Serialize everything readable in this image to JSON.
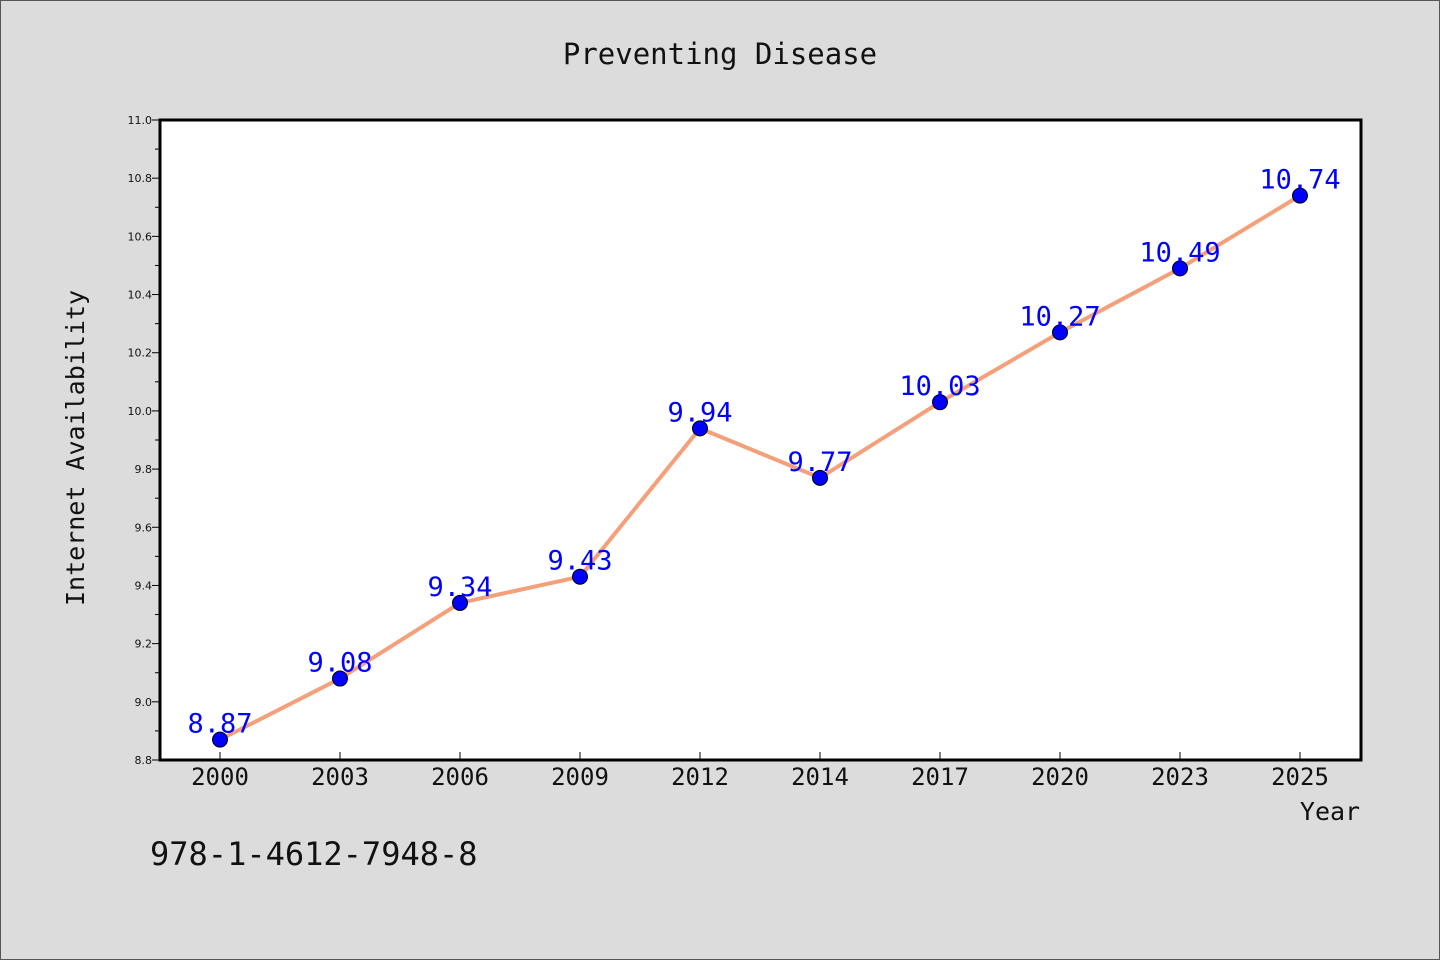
{
  "chart_data": {
    "type": "line",
    "title": "Preventing Disease",
    "xlabel": "Year",
    "ylabel": "Internet Availability",
    "categories": [
      "2000",
      "2003",
      "2006",
      "2009",
      "2012",
      "2014",
      "2017",
      "2020",
      "2023",
      "2025"
    ],
    "series": [
      {
        "values": [
          8.87,
          9.08,
          9.34,
          9.43,
          9.94,
          9.77,
          10.03,
          10.27,
          10.49,
          10.74
        ],
        "line_color": "#f4a07a",
        "marker_color": "#0000ff"
      }
    ],
    "data_labels": [
      "8.87",
      "9.08",
      "9.34",
      "9.43",
      "9.94",
      "9.77",
      "10.03",
      "10.27",
      "10.49",
      "10.74"
    ],
    "ylim": [
      8.8,
      11.0
    ],
    "yticks": [
      "8.8",
      "9.0",
      "9.2",
      "9.4",
      "9.6",
      "9.8",
      "10.0",
      "10.2",
      "10.4",
      "10.6",
      "10.8",
      "11.0"
    ],
    "grid": false,
    "legend": "none"
  },
  "footer": {
    "isbn": "978-1-4612-7948-8"
  },
  "colors": {
    "background": "#dcdcdc",
    "plot_background": "#ffffff",
    "line": "#f4a07a",
    "marker": "#0000ff",
    "label": "#0000ff"
  }
}
